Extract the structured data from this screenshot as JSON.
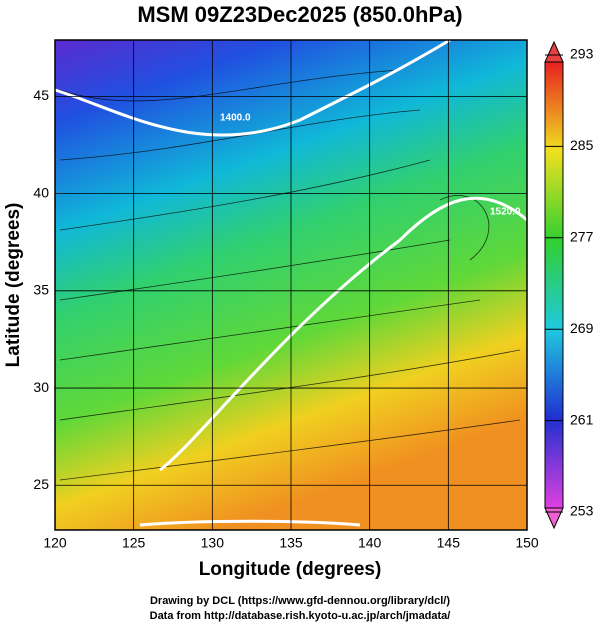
{
  "header": {
    "title": "MSM 09Z23Dec2025 (850.0hPa)"
  },
  "map": {
    "xlabel": "Longitude (degrees)",
    "ylabel": "Latitude  (degrees)",
    "xlim": [
      120,
      150
    ],
    "ylim": [
      22.7,
      47.9
    ],
    "xticks": [
      120,
      125,
      130,
      135,
      140,
      145,
      150
    ],
    "yticks": [
      25,
      30,
      35,
      40,
      45
    ],
    "contour_labels": [
      "1400.0",
      "1520.0"
    ]
  },
  "colorbar": {
    "lim": [
      253,
      293
    ],
    "ticks": [
      253,
      261,
      269,
      277,
      285,
      293
    ]
  },
  "footer": {
    "line1": "Drawing by DCL (https://www.gfd-dennou.org/library/dcl/)",
    "line2": "Data from http://database.rish.kyoto-u.ac.jp/arch/jmadata/"
  }
}
